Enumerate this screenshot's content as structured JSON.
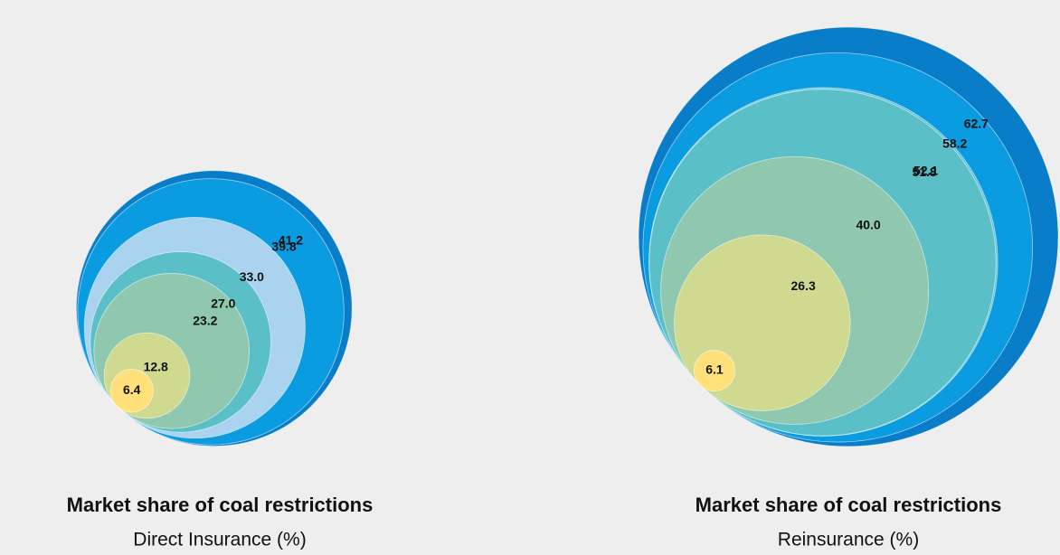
{
  "chart_data": [
    {
      "type": "bubble",
      "title": "Market share of coal restrictions",
      "subtitle": "Direct Insurance (%)",
      "values": [
        41.2,
        39.8,
        33.0,
        27.0,
        23.2,
        12.8,
        6.4
      ],
      "value_labels": [
        "41.2",
        "39.8",
        "33.0",
        "27.0",
        "23.2",
        "12.8",
        "6.4"
      ],
      "colors": [
        "#0a7dc8",
        "#0a9be0",
        "#a9d3ee",
        "#5bbfc8",
        "#8fc8ae",
        "#cfd98f",
        "#ffe07a"
      ]
    },
    {
      "type": "bubble",
      "title": "Market share of coal restrictions",
      "subtitle": "Reinsurance (%)",
      "values": [
        62.7,
        58.2,
        52.1,
        51.8,
        40.0,
        26.3,
        6.1
      ],
      "value_labels": [
        "62.7",
        "58.2",
        "52.1",
        "51.8",
        "40.0",
        "26.3",
        "6.1"
      ],
      "colors": [
        "#0a7dc8",
        "#0a9be0",
        "#62c3d2",
        "#5bbfc8",
        "#8fc8ae",
        "#cfd98f",
        "#ffe07a"
      ]
    }
  ]
}
